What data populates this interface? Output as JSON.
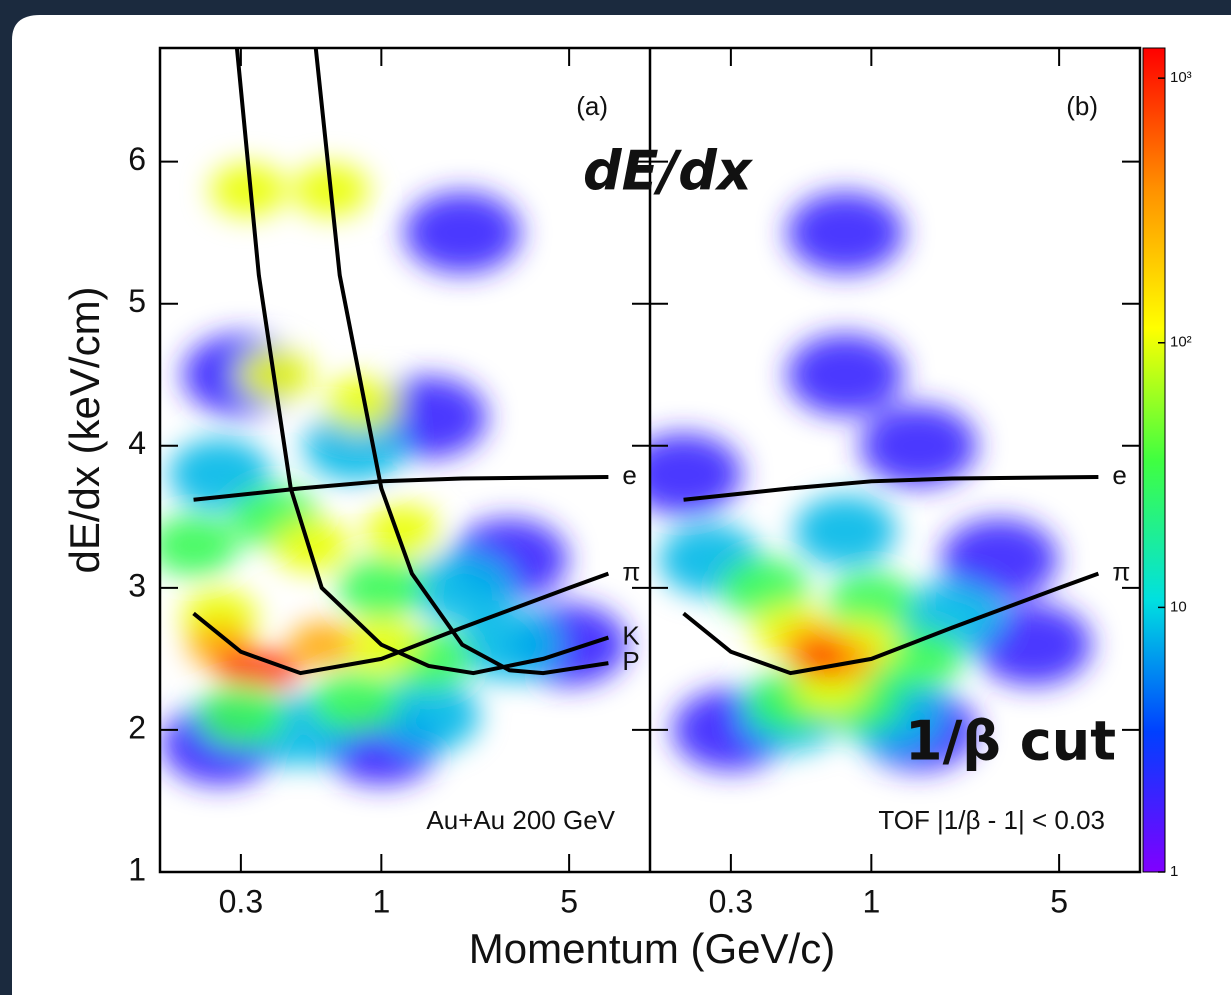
{
  "chart_data": [
    {
      "type": "heatmap",
      "panel_label": "(a)",
      "note": "Au+Au 200 GeV",
      "log_x": true,
      "xlim": [
        0.15,
        10
      ],
      "xticks": [
        0.3,
        1,
        5
      ],
      "ylim": [
        1,
        6.8
      ],
      "yticks": [
        1,
        2,
        3,
        4,
        5,
        6
      ],
      "density": {
        "x": [
          0.3,
          1.5,
          3,
          5,
          0.25,
          1,
          2,
          0.25,
          0.8,
          2,
          3,
          0.5,
          1.5,
          0.2,
          0.4,
          1,
          1.5,
          0.3,
          0.8,
          0.32,
          0.4,
          0.55,
          0.65,
          0.85,
          1.2,
          0.25,
          1,
          0.25,
          0.6,
          0.3,
          0.4
        ],
        "y": [
          4.5,
          4.2,
          3.2,
          2.6,
          1.9,
          1.9,
          5.5,
          3.8,
          4.0,
          3.0,
          2.6,
          2.0,
          2.1,
          3.3,
          3.5,
          3.0,
          2.5,
          2.1,
          2.2,
          5.8,
          4.5,
          3.3,
          5.8,
          4.3,
          3.4,
          2.8,
          2.6,
          2.6,
          2.6,
          2.45,
          2.42
        ],
        "counts": [
          2,
          2,
          2,
          2,
          2,
          2,
          2,
          8,
          8,
          8,
          8,
          8,
          8,
          30,
          30,
          30,
          30,
          30,
          30,
          100,
          100,
          100,
          100,
          100,
          100,
          100,
          100,
          300,
          300,
          1000,
          1000
        ]
      },
      "curves": [
        {
          "name": "e",
          "x": [
            0.2,
            0.5,
            1,
            2,
            7
          ],
          "y": [
            3.62,
            3.7,
            3.75,
            3.77,
            3.78
          ]
        },
        {
          "name": "π",
          "x": [
            0.2,
            0.3,
            0.5,
            1,
            2,
            5,
            7
          ],
          "y": [
            2.82,
            2.55,
            2.4,
            2.5,
            2.72,
            3.0,
            3.1
          ]
        },
        {
          "name": "K",
          "x": [
            0.29,
            0.35,
            0.46,
            0.6,
            1,
            1.5,
            2.2,
            4,
            7
          ],
          "y": [
            6.8,
            5.2,
            3.7,
            3.0,
            2.6,
            2.45,
            2.4,
            2.5,
            2.65
          ]
        },
        {
          "name": "P",
          "x": [
            0.57,
            0.7,
            1,
            1.3,
            2,
            3,
            4,
            7
          ],
          "y": [
            6.8,
            5.2,
            3.7,
            3.1,
            2.6,
            2.42,
            2.4,
            2.47
          ]
        }
      ]
    },
    {
      "type": "heatmap",
      "panel_label": "(b)",
      "note": "TOF |1/β - 1| < 0.03",
      "log_x": true,
      "xlim": [
        0.15,
        10
      ],
      "xticks": [
        0.3,
        1,
        5
      ],
      "ylim": [
        1,
        6.8
      ],
      "density": {
        "x": [
          0.2,
          0.8,
          1.5,
          3,
          4,
          0.3,
          1.5,
          0.8,
          0.25,
          0.8,
          2,
          0.5,
          1.2,
          0.4,
          1,
          1.5,
          0.5,
          0.9,
          0.5,
          0.9,
          0.7,
          0.6,
          0.8,
          0.65
        ],
        "y": [
          3.8,
          4.5,
          4.0,
          3.2,
          2.6,
          2.0,
          2.0,
          5.5,
          3.2,
          3.4,
          2.8,
          2.1,
          2.1,
          3.0,
          2.9,
          2.5,
          2.2,
          2.2,
          2.7,
          2.6,
          2.3,
          2.6,
          2.5,
          2.5
        ],
        "counts": [
          2,
          2,
          2,
          2,
          2,
          2,
          2,
          2,
          8,
          8,
          8,
          8,
          8,
          30,
          30,
          30,
          30,
          30,
          100,
          100,
          100,
          300,
          300,
          1000
        ]
      },
      "curves": [
        {
          "name": "e",
          "x": [
            0.2,
            0.5,
            1,
            2,
            7
          ],
          "y": [
            3.62,
            3.7,
            3.75,
            3.77,
            3.78
          ]
        },
        {
          "name": "π",
          "x": [
            0.2,
            0.3,
            0.5,
            1,
            2,
            5,
            7
          ],
          "y": [
            2.82,
            2.55,
            2.4,
            2.5,
            2.72,
            3.0,
            3.1
          ]
        }
      ]
    }
  ],
  "xlabel": "Momentum (GeV/c)",
  "ylabel": "dE/dx (keV/cm)",
  "colorbar": {
    "log": true,
    "lim": [
      1,
      1300
    ],
    "ticks": [
      1,
      10,
      {
        "value": 100,
        "label": "10²"
      },
      {
        "value": 1000,
        "label": "10³"
      }
    ]
  },
  "overlays": [
    "dE/dx",
    "1/β cut"
  ]
}
